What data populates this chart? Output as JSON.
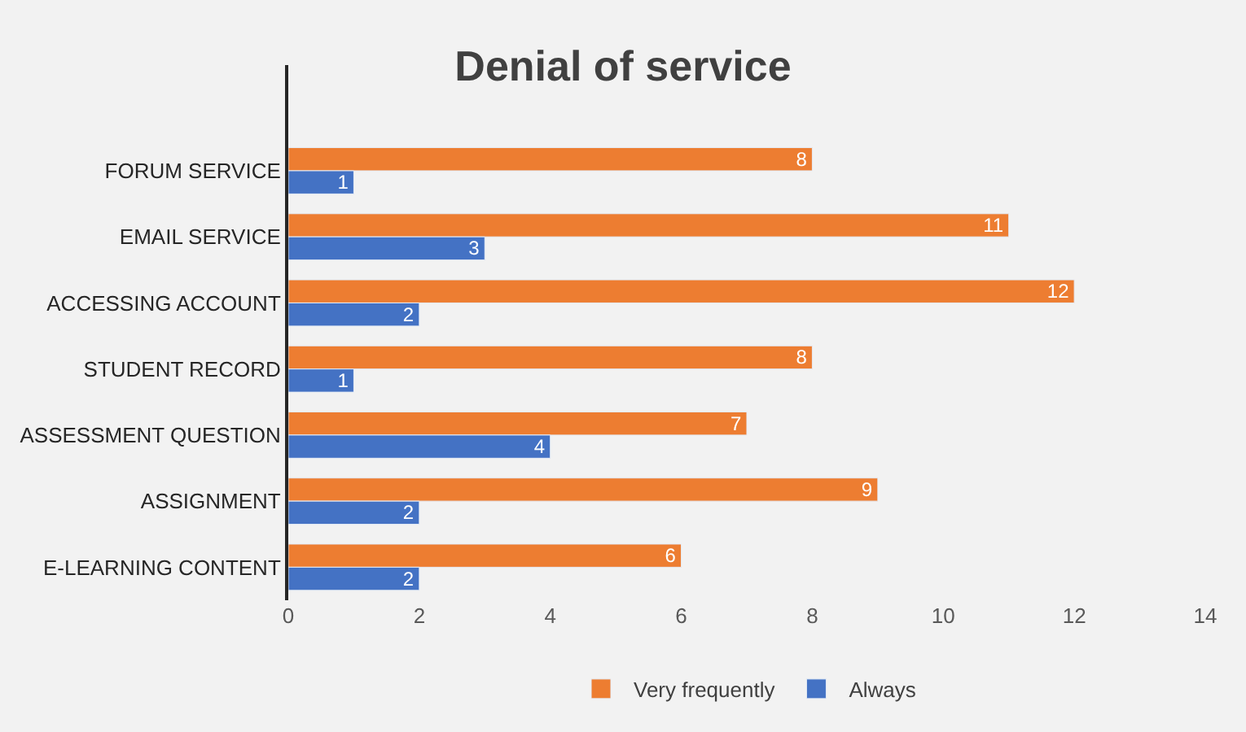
{
  "chart_data": {
    "type": "bar",
    "orientation": "horizontal",
    "title": "Denial of service",
    "categories": [
      "FORUM SERVICE",
      "EMAIL SERVICE",
      "ACCESSING ACCOUNT",
      "STUDENT RECORD",
      "ASSESSMENT QUESTION",
      "ASSIGNMENT",
      "E-LEARNING CONTENT"
    ],
    "series": [
      {
        "name": "Very frequently",
        "color": "#ed7d31",
        "values": [
          8,
          11,
          12,
          8,
          7,
          9,
          6
        ]
      },
      {
        "name": "Always",
        "color": "#4472c4",
        "values": [
          1,
          3,
          2,
          1,
          4,
          2,
          2
        ]
      }
    ],
    "xlim": [
      0,
      14
    ],
    "xticks": [
      0,
      2,
      4,
      6,
      8,
      10,
      12,
      14
    ],
    "grid": false,
    "legend": "bottom",
    "data_labels": true
  }
}
